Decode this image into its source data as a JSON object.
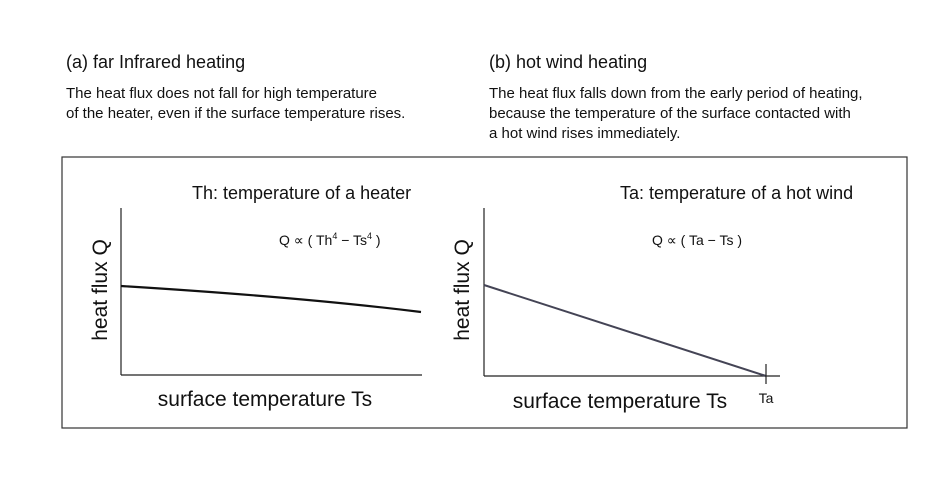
{
  "panel_a": {
    "heading": "(a) far Infrared heating",
    "description": [
      "The heat flux does not fall for high temperature",
      "of the heater, even if the surface temperature rises."
    ],
    "subtitle": "Th: temperature of a heater",
    "formula": {
      "start": "Q ∝ ( Th",
      "sup1": "4",
      "middle": " − Ts",
      "sup2": "4",
      "end": " )"
    },
    "y_label": "heat flux Q",
    "x_label": "surface temperature Ts"
  },
  "panel_b": {
    "heading": "(b) hot wind heating",
    "description": [
      "The heat flux falls down from the early period of heating,",
      "because the temperature of the surface contacted with",
      "a hot wind rises immediately."
    ],
    "subtitle": "Ta: temperature of a hot wind",
    "formula": "Q ∝ ( Ta − Ts )",
    "y_label": "heat flux Q",
    "x_label": "surface temperature Ts",
    "x_mark_label": "Ta"
  }
}
